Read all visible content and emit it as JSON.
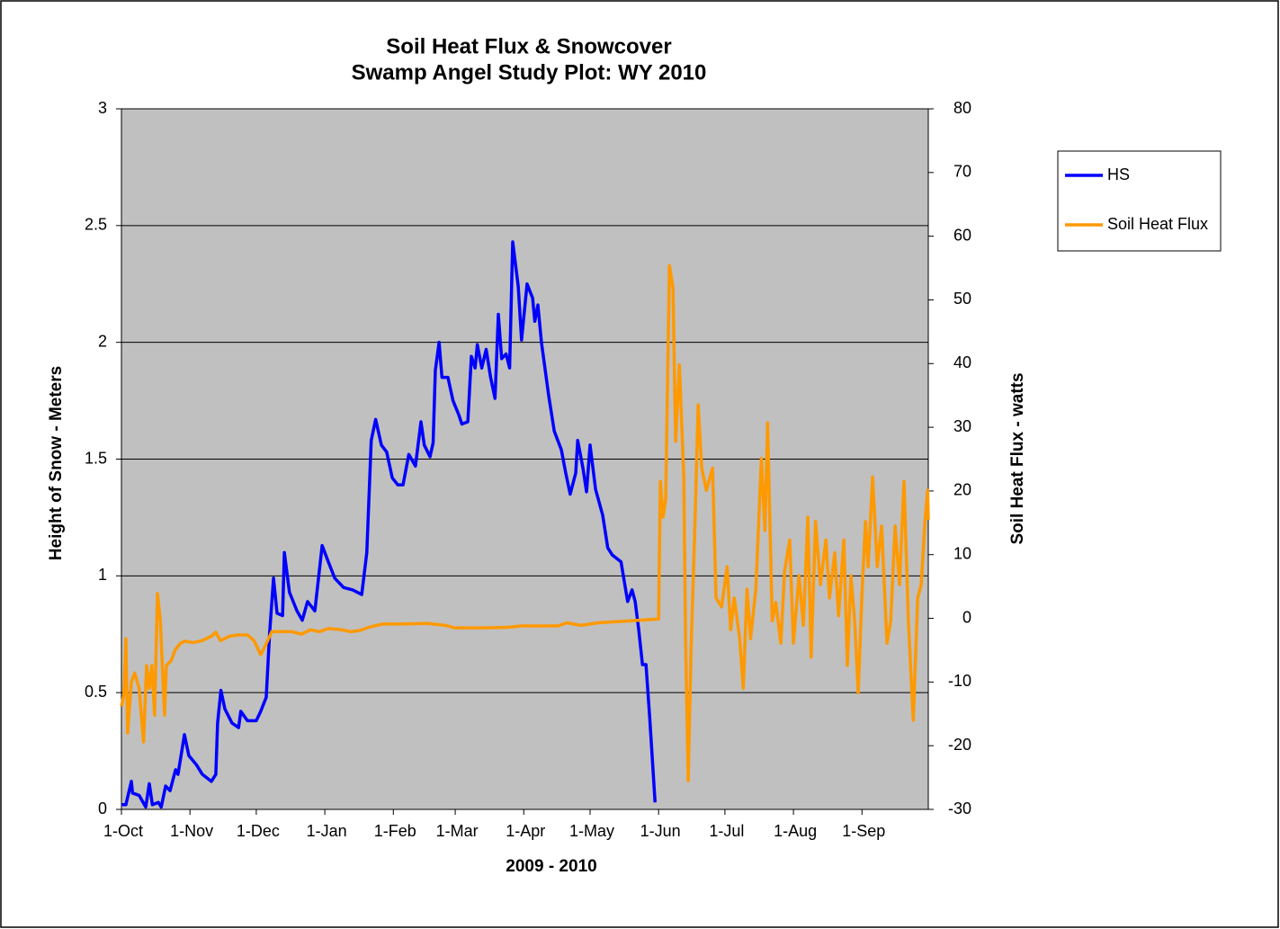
{
  "chart_data": {
    "type": "line",
    "title": "Soil Heat Flux & Snowcover",
    "subtitle": "Swamp Angel Study Plot: WY 2010",
    "x_label": "2009 - 2010",
    "y_label": "Height of Snow - Meters",
    "y2_label": "Soil Heat Flux - watts",
    "xlim": [
      0,
      365
    ],
    "xticks": [
      {
        "value": 0,
        "label": "1-Oct"
      },
      {
        "value": 31,
        "label": "1-Nov"
      },
      {
        "value": 61,
        "label": "1-Dec"
      },
      {
        "value": 92,
        "label": "1-Jan"
      },
      {
        "value": 123,
        "label": "1-Feb"
      },
      {
        "value": 151,
        "label": "1-Mar"
      },
      {
        "value": 182,
        "label": "1-Apr"
      },
      {
        "value": 212,
        "label": "1-May"
      },
      {
        "value": 243,
        "label": "1-Jun"
      },
      {
        "value": 273,
        "label": "1-Jul"
      },
      {
        "value": 304,
        "label": "1-Aug"
      },
      {
        "value": 335,
        "label": "1-Sep"
      }
    ],
    "ylim": [
      0,
      3
    ],
    "yticks": [
      0,
      0.5,
      1,
      1.5,
      2,
      2.5,
      3
    ],
    "y2lim": [
      -30,
      80
    ],
    "y2ticks": [
      -30,
      -20,
      -10,
      0,
      10,
      20,
      30,
      40,
      50,
      60,
      70,
      80
    ],
    "grid": true,
    "legend": "right",
    "series": [
      {
        "name": "HS",
        "color": "#0000ff",
        "x": [
          0,
          2,
          4.5,
          5,
          8,
          11,
          12.6,
          14,
          16.7,
          18,
          20,
          22,
          24.5,
          25.6,
          28.5,
          30.5,
          34,
          36.6,
          40.7,
          42.7,
          43.5,
          45,
          46.8,
          50,
          53,
          54,
          57,
          61,
          63,
          65.5,
          67,
          68.8,
          70.4,
          72.9,
          73.7,
          76,
          79.4,
          81.8,
          84.2,
          87.5,
          90.8,
          93.6,
          96.5,
          100.5,
          104.6,
          108.7,
          111,
          113,
          115,
          117.6,
          120,
          122.5,
          125,
          127.4,
          130,
          133,
          135.5,
          137,
          139.6,
          141,
          142,
          143.7,
          145,
          147.7,
          150,
          152.6,
          154,
          156.7,
          158.3,
          160,
          161,
          163,
          165,
          167,
          169,
          170.5,
          172,
          174,
          175.6,
          177,
          179.5,
          181,
          183.5,
          186,
          187,
          188.4,
          190,
          193.3,
          195.8,
          199,
          201,
          203,
          205.5,
          206.4,
          208.8,
          210.4,
          212,
          214.5,
          217.7,
          220,
          222,
          226,
          229,
          231,
          232.4,
          234,
          235.7,
          237.3,
          239,
          241.4
        ],
        "values": [
          0.02,
          0.02,
          0.12,
          0.07,
          0.06,
          0.01,
          0.11,
          0.02,
          0.03,
          0.01,
          0.1,
          0.08,
          0.17,
          0.15,
          0.32,
          0.23,
          0.19,
          0.15,
          0.12,
          0.15,
          0.37,
          0.51,
          0.43,
          0.37,
          0.35,
          0.42,
          0.38,
          0.38,
          0.42,
          0.48,
          0.75,
          0.99,
          0.84,
          0.83,
          1.1,
          0.93,
          0.85,
          0.81,
          0.89,
          0.85,
          1.13,
          1.06,
          0.99,
          0.95,
          0.94,
          0.92,
          1.1,
          1.58,
          1.67,
          1.56,
          1.53,
          1.42,
          1.39,
          1.39,
          1.52,
          1.47,
          1.66,
          1.56,
          1.51,
          1.57,
          1.88,
          2.0,
          1.85,
          1.85,
          1.75,
          1.69,
          1.65,
          1.66,
          1.94,
          1.89,
          1.99,
          1.89,
          1.97,
          1.85,
          1.76,
          2.12,
          1.93,
          1.95,
          1.89,
          2.43,
          2.24,
          2.01,
          2.25,
          2.19,
          2.09,
          2.16,
          2.0,
          1.77,
          1.62,
          1.54,
          1.44,
          1.35,
          1.44,
          1.58,
          1.46,
          1.36,
          1.56,
          1.37,
          1.26,
          1.12,
          1.09,
          1.06,
          0.89,
          0.94,
          0.89,
          0.77,
          0.62,
          0.62,
          0.39,
          0.03
        ]
      },
      {
        "name": "Soil Heat Flux",
        "color": "#ff9900",
        "axis": "y2",
        "x": [
          0,
          1.2,
          2,
          2.8,
          4.5,
          6,
          8,
          10,
          11.4,
          12.6,
          13.8,
          15,
          16.3,
          17.6,
          19.5,
          20.3,
          22.4,
          24.4,
          26.5,
          28.5,
          32.6,
          36.6,
          40.7,
          42.7,
          44.8,
          49,
          53,
          57,
          60,
          63,
          65.5,
          68,
          72,
          77.3,
          81.4,
          85.5,
          89.5,
          93.6,
          99.7,
          103.8,
          107.9,
          112,
          118,
          126,
          138.4,
          146.5,
          150.6,
          164.8,
          175,
          181,
          197.4,
          201.5,
          207.6,
          215.7,
          230,
          243,
          243.8,
          245,
          246.2,
          247.9,
          249.5,
          250.7,
          252.4,
          254.4,
          255.2,
          256.4,
          257.7,
          259.3,
          260.9,
          262.5,
          264.6,
          267.4,
          269,
          271.5,
          274,
          275.6,
          277.2,
          279.7,
          281.3,
          283,
          284.6,
          287,
          289.5,
          291.1,
          292.3,
          294.4,
          296,
          298.3,
          300,
          302.3,
          304,
          306.5,
          308.5,
          310.5,
          312,
          314,
          316.2,
          318.7,
          320.3,
          322.7,
          324.4,
          326.8,
          328.4,
          330,
          331.7,
          333.3,
          335,
          336.6,
          337.8,
          339.8,
          341.9,
          343.9,
          346.3,
          348,
          350,
          352,
          354,
          356,
          358.2,
          360.2,
          361.8,
          363.5,
          364.7,
          365
        ],
        "values": [
          -13.8,
          -11.7,
          -3.2,
          -18,
          -10,
          -8.6,
          -11,
          -19.4,
          -7.4,
          -11,
          -7.4,
          -15.2,
          3.9,
          -0.4,
          -15.2,
          -7.4,
          -6.7,
          -4.9,
          -4,
          -3.6,
          -3.8,
          -3.5,
          -2.8,
          -2.2,
          -3.5,
          -2.8,
          -2.6,
          -2.6,
          -3.5,
          -5.7,
          -4,
          -2.1,
          -2.1,
          -2.1,
          -2.5,
          -1.8,
          -2.1,
          -1.6,
          -1.8,
          -2.1,
          -1.9,
          -1.4,
          -0.9,
          -0.9,
          -0.8,
          -1.1,
          -1.5,
          -1.5,
          -1.4,
          -1.2,
          -1.2,
          -0.7,
          -1.1,
          -0.7,
          -0.4,
          -0.1,
          21.5,
          15.9,
          18.7,
          55.4,
          51.9,
          27.8,
          39.8,
          22.2,
          -3.2,
          -25.5,
          -4.6,
          13.1,
          33.5,
          23.6,
          20.1,
          23.6,
          3.2,
          1.8,
          8.1,
          -1.8,
          3.2,
          -3.2,
          -11,
          4.6,
          -3.2,
          4.6,
          25.1,
          13.8,
          30.7,
          -0.4,
          2.5,
          -3.9,
          7.4,
          12.3,
          -3.9,
          6.7,
          -1.1,
          15.9,
          -6.1,
          15.2,
          5.3,
          12.3,
          3.2,
          10.3,
          0.4,
          12.3,
          -7.4,
          6.7,
          -0.4,
          -11.7,
          3.9,
          15.2,
          8.1,
          22.2,
          8.1,
          14.5,
          -3.9,
          -0.4,
          14.5,
          5.3,
          21.5,
          -0.4,
          -16,
          3.2,
          5.3,
          15.2,
          20.1,
          15.5
        ]
      }
    ]
  }
}
